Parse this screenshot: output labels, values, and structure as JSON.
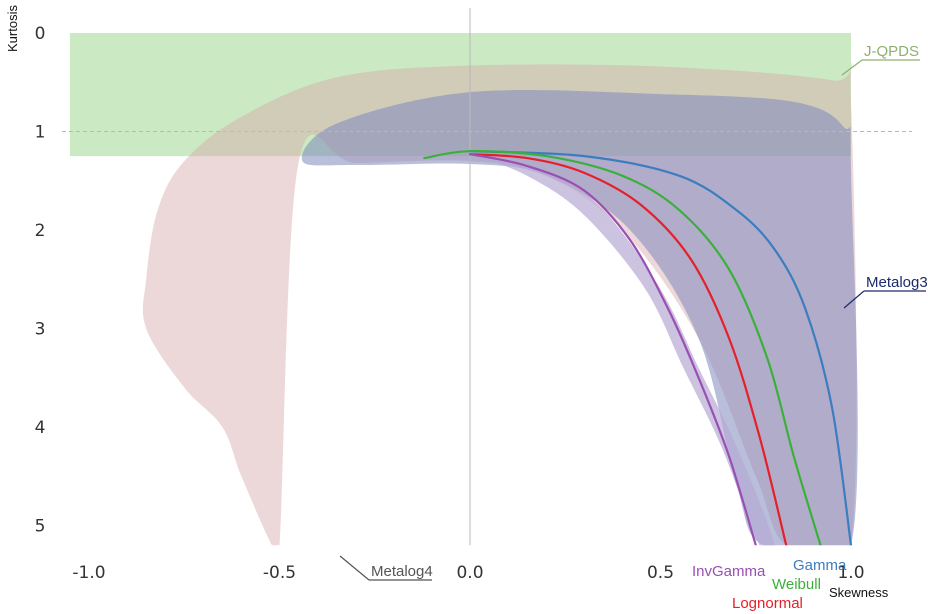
{
  "chart_data": {
    "type": "area",
    "xlabel": "Skewness",
    "ylabel": "Kurtosis",
    "xlim": [
      -1.05,
      1.05
    ],
    "ylim": [
      0,
      5.2
    ],
    "y_inverted": true,
    "x_ticks": [
      "-1.0",
      "-0.5",
      "0.0",
      "0.5",
      "1.0"
    ],
    "y_ticks": [
      "0",
      "1",
      "2",
      "3",
      "4",
      "5"
    ],
    "reference_lines": {
      "x": 0.0,
      "y": 1.0
    },
    "regions": [
      {
        "name": "J-QPDS",
        "color": "#a9dc9d",
        "opacity": 0.6,
        "points": [
          [
            -1.05,
            0.0
          ],
          [
            1.0,
            0.0
          ],
          [
            1.0,
            1.25
          ],
          [
            -1.05,
            1.25
          ]
        ]
      },
      {
        "name": "Metalog4",
        "color": "#d7a9ab",
        "opacity": 0.45,
        "points": [
          [
            -0.35,
            0.45
          ],
          [
            0.0,
            0.33
          ],
          [
            0.5,
            0.34
          ],
          [
            0.95,
            0.48
          ],
          [
            1.0,
            0.7
          ],
          [
            1.0,
            5.2
          ],
          [
            0.83,
            5.2
          ],
          [
            0.75,
            4.5
          ],
          [
            0.6,
            3.1
          ],
          [
            0.4,
            2.0
          ],
          [
            0.2,
            1.45
          ],
          [
            0.0,
            1.3
          ],
          [
            -0.3,
            1.32
          ],
          [
            -0.45,
            1.32
          ],
          [
            -0.5,
            5.2
          ],
          [
            -0.52,
            5.2
          ],
          [
            -0.6,
            4.5
          ],
          [
            -0.65,
            4.0
          ],
          [
            -0.75,
            3.6
          ],
          [
            -0.85,
            3.0
          ],
          [
            -0.85,
            2.5
          ],
          [
            -0.82,
            1.8
          ],
          [
            -0.75,
            1.3
          ],
          [
            -0.6,
            0.85
          ]
        ]
      },
      {
        "name": "Metalog3",
        "color": "#7f89bd",
        "opacity": 0.55,
        "points": [
          [
            -0.35,
            0.92
          ],
          [
            0.0,
            0.6
          ],
          [
            0.5,
            0.62
          ],
          [
            0.85,
            0.7
          ],
          [
            0.98,
            0.95
          ],
          [
            1.0,
            1.4
          ],
          [
            1.0,
            5.2
          ],
          [
            0.77,
            5.2
          ],
          [
            0.7,
            4.6
          ],
          [
            0.6,
            3.1
          ],
          [
            0.42,
            2.0
          ],
          [
            0.2,
            1.45
          ],
          [
            0.0,
            1.33
          ],
          [
            -0.3,
            1.34
          ],
          [
            -0.44,
            1.3
          ]
        ]
      },
      {
        "name": "",
        "color": "#b7a9d4",
        "opacity": 0.7,
        "points": [
          [
            0.0,
            1.19
          ],
          [
            0.2,
            1.4
          ],
          [
            0.35,
            1.8
          ],
          [
            0.5,
            2.6
          ],
          [
            0.6,
            3.4
          ],
          [
            0.7,
            4.2
          ],
          [
            0.8,
            5.2
          ],
          [
            0.76,
            5.2
          ],
          [
            0.66,
            4.2
          ],
          [
            0.56,
            3.4
          ],
          [
            0.46,
            2.6
          ],
          [
            0.3,
            1.85
          ],
          [
            0.15,
            1.45
          ],
          [
            0.0,
            1.22
          ]
        ]
      }
    ],
    "series": [
      {
        "name": "Gamma",
        "color": "#3b7dbf",
        "points": [
          [
            0.0,
            1.2
          ],
          [
            0.3,
            1.25
          ],
          [
            0.55,
            1.45
          ],
          [
            0.7,
            1.8
          ],
          [
            0.8,
            2.2
          ],
          [
            0.88,
            2.8
          ],
          [
            0.95,
            3.8
          ],
          [
            1.0,
            5.2
          ]
        ]
      },
      {
        "name": "Weibull",
        "color": "#3ab03a",
        "points": [
          [
            -0.12,
            1.27
          ],
          [
            0.0,
            1.2
          ],
          [
            0.2,
            1.25
          ],
          [
            0.4,
            1.45
          ],
          [
            0.55,
            1.8
          ],
          [
            0.68,
            2.4
          ],
          [
            0.78,
            3.3
          ],
          [
            0.85,
            4.3
          ],
          [
            0.92,
            5.2
          ]
        ]
      },
      {
        "name": "Lognormal",
        "color": "#e4202a",
        "points": [
          [
            0.0,
            1.23
          ],
          [
            0.15,
            1.27
          ],
          [
            0.3,
            1.42
          ],
          [
            0.45,
            1.75
          ],
          [
            0.58,
            2.3
          ],
          [
            0.68,
            3.1
          ],
          [
            0.76,
            4.1
          ],
          [
            0.83,
            5.2
          ]
        ]
      },
      {
        "name": "InvGamma",
        "color": "#9a4fb3",
        "points": [
          [
            0.0,
            1.23
          ],
          [
            0.15,
            1.35
          ],
          [
            0.3,
            1.6
          ],
          [
            0.42,
            2.1
          ],
          [
            0.52,
            2.8
          ],
          [
            0.6,
            3.5
          ],
          [
            0.68,
            4.3
          ],
          [
            0.75,
            5.2
          ]
        ]
      }
    ],
    "annotations": [
      {
        "label": "J-QPDS",
        "color": "#8fb06f",
        "anchor": [
          0.9,
          0.45
        ],
        "text_at": [
          1.05,
          0.25
        ]
      },
      {
        "label": "Metalog3",
        "color": "#1c2a6b",
        "anchor": [
          0.92,
          2.8
        ],
        "text_at": [
          1.05,
          2.6
        ]
      },
      {
        "label": "Metalog4",
        "color": "#555555",
        "anchor": [
          -0.35,
          5.0
        ],
        "text_at": [
          -0.18,
          5.3
        ]
      },
      {
        "label": "InvGamma",
        "color": "#9a4fb3"
      },
      {
        "label": "Gamma",
        "color": "#3b7dbf"
      },
      {
        "label": "Weibull",
        "color": "#3ab03a"
      },
      {
        "label": "Lognormal",
        "color": "#e4202a"
      }
    ]
  }
}
